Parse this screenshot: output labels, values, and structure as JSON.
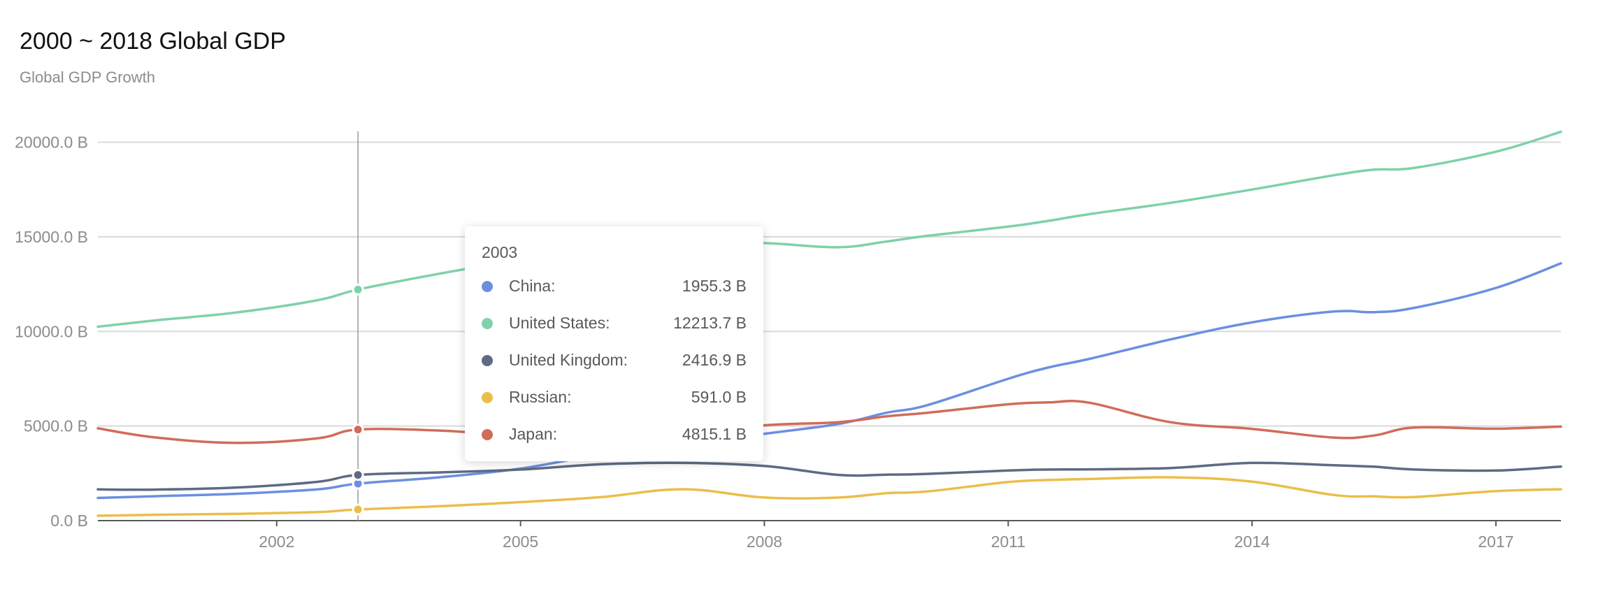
{
  "chart_data": {
    "type": "line",
    "title": "2000 ~ 2018 Global GDP",
    "subtitle": "Global GDP Growth",
    "xlabel": "",
    "ylabel": "",
    "x": [
      1999.8,
      2000.5,
      2001.5,
      2002.5,
      2003.0,
      2004.0,
      2005.0,
      2006.0,
      2007.0,
      2008.0,
      2008.9,
      2009.5,
      2010.0,
      2011.0,
      2011.5,
      2012.0,
      2013.0,
      2014.0,
      2015.0,
      2015.5,
      2016.0,
      2017.0,
      2017.8
    ],
    "x_ticks": [
      2002,
      2005,
      2008,
      2011,
      2014,
      2017
    ],
    "y_ticks": [
      0,
      5000,
      10000,
      15000,
      20000
    ],
    "y_tick_labels": [
      "0.0 B",
      "5000.0 B",
      "10000.0 B",
      "15000.0 B",
      "20000.0 B"
    ],
    "xlim": [
      1999.8,
      2017.8
    ],
    "ylim": [
      0,
      20500
    ],
    "grid": true,
    "series": [
      {
        "name": "China",
        "color": "#6b8fe0",
        "values": [
          1200,
          1290,
          1420,
          1650,
          1955.3,
          2290,
          2750,
          3500,
          4000,
          4590,
          5100,
          5700,
          6100,
          7500,
          8100,
          8550,
          9580,
          10480,
          11050,
          11020,
          11250,
          12300,
          13600
        ]
      },
      {
        "name": "United States",
        "color": "#7fd1a9",
        "values": [
          10250,
          10580,
          11000,
          11650,
          12213.7,
          13050,
          13800,
          14480,
          14750,
          14670,
          14450,
          14750,
          15050,
          15540,
          15850,
          16200,
          16800,
          17500,
          18250,
          18550,
          18650,
          19500,
          20550
        ]
      },
      {
        "name": "United Kingdom",
        "color": "#5d6b83",
        "values": [
          1650,
          1640,
          1750,
          2050,
          2416.9,
          2550,
          2700,
          2980,
          3050,
          2890,
          2420,
          2430,
          2470,
          2650,
          2700,
          2710,
          2780,
          3050,
          2930,
          2850,
          2700,
          2650,
          2860
        ]
      },
      {
        "name": "Russian",
        "color": "#ebbe4a",
        "values": [
          260,
          310,
          360,
          450,
          591.0,
          760,
          980,
          1250,
          1660,
          1222,
          1220,
          1450,
          1540,
          2040,
          2150,
          2200,
          2290,
          2060,
          1360,
          1280,
          1250,
          1560,
          1660
        ]
      },
      {
        "name": "Japan",
        "color": "#d16c5b",
        "values": [
          4880,
          4400,
          4110,
          4350,
          4815.1,
          4760,
          4510,
          4520,
          4600,
          5040,
          5200,
          5510,
          5700,
          6150,
          6250,
          6230,
          5200,
          4850,
          4390,
          4500,
          4920,
          4860,
          4970
        ]
      }
    ],
    "tooltip": {
      "title": "2003",
      "rows": [
        {
          "name": "China:",
          "value": "1955.3 B",
          "color": "#6b8fe0"
        },
        {
          "name": "United States:",
          "value": "12213.7 B",
          "color": "#7fd1a9"
        },
        {
          "name": "United Kingdom:",
          "value": "2416.9 B",
          "color": "#5d6b83"
        },
        {
          "name": "Russian:",
          "value": "591.0 B",
          "color": "#ebbe4a"
        },
        {
          "name": "Japan:",
          "value": "4815.1 B",
          "color": "#d16c5b"
        }
      ]
    }
  }
}
